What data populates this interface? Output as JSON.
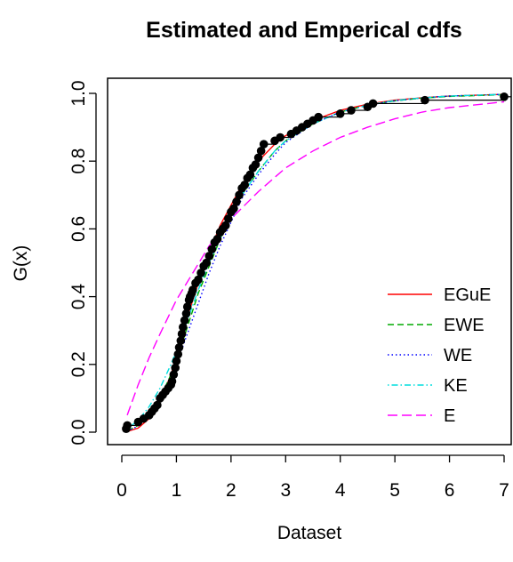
{
  "chart_data": {
    "type": "line",
    "title": "Estimated and Emperical cdfs",
    "xlabel": "Dataset",
    "ylabel": "G(x)",
    "xlim": [
      0,
      7
    ],
    "ylim": [
      0,
      1
    ],
    "x_ticks": [
      "0",
      "1",
      "2",
      "3",
      "4",
      "5",
      "6",
      "7"
    ],
    "y_ticks": [
      "0.0",
      "0.2",
      "0.4",
      "0.6",
      "0.8",
      "1.0"
    ],
    "grid": false,
    "legend_position": "bottom-right",
    "series": [
      {
        "name": "EGuE",
        "color": "#ff0000",
        "dash": "solid",
        "x": [
          0.1,
          0.3,
          0.5,
          0.7,
          0.9,
          1.0,
          1.1,
          1.2,
          1.4,
          1.6,
          1.8,
          2.0,
          2.2,
          2.5,
          2.8,
          3.0,
          3.5,
          4.0,
          4.5,
          5.0,
          5.5,
          6.0,
          7.0
        ],
        "y": [
          0.002,
          0.012,
          0.04,
          0.09,
          0.17,
          0.22,
          0.28,
          0.34,
          0.44,
          0.53,
          0.61,
          0.67,
          0.73,
          0.8,
          0.85,
          0.875,
          0.92,
          0.95,
          0.968,
          0.98,
          0.987,
          0.992,
          0.997
        ]
      },
      {
        "name": "EWE",
        "color": "#00aa00",
        "dash": "dashed",
        "x": [
          0.1,
          0.3,
          0.5,
          0.7,
          0.9,
          1.0,
          1.2,
          1.4,
          1.6,
          1.8,
          2.0,
          2.2,
          2.5,
          2.8,
          3.0,
          3.5,
          4.0,
          4.5,
          5.0,
          5.5,
          6.0,
          7.0
        ],
        "y": [
          0.004,
          0.02,
          0.05,
          0.1,
          0.17,
          0.21,
          0.31,
          0.41,
          0.49,
          0.57,
          0.64,
          0.7,
          0.77,
          0.83,
          0.86,
          0.91,
          0.945,
          0.965,
          0.978,
          0.986,
          0.991,
          0.996
        ]
      },
      {
        "name": "WE",
        "color": "#0000ff",
        "dash": "dotted",
        "x": [
          0.1,
          0.3,
          0.5,
          0.7,
          0.9,
          1.0,
          1.2,
          1.4,
          1.6,
          1.8,
          2.0,
          2.2,
          2.5,
          2.8,
          3.0,
          3.5,
          4.0,
          4.5,
          5.0,
          5.5,
          6.0,
          7.0
        ],
        "y": [
          0.003,
          0.018,
          0.048,
          0.095,
          0.16,
          0.2,
          0.29,
          0.38,
          0.47,
          0.55,
          0.62,
          0.69,
          0.76,
          0.82,
          0.855,
          0.91,
          0.945,
          0.965,
          0.978,
          0.987,
          0.992,
          0.997
        ]
      },
      {
        "name": "KE",
        "color": "#00dddd",
        "dash": "dotdash",
        "x": [
          0.1,
          0.3,
          0.5,
          0.7,
          0.9,
          1.0,
          1.2,
          1.4,
          1.6,
          1.8,
          2.0,
          2.2,
          2.5,
          2.8,
          3.0,
          3.5,
          4.0,
          4.5,
          5.0,
          5.5,
          6.0,
          7.0
        ],
        "y": [
          0.01,
          0.035,
          0.075,
          0.13,
          0.2,
          0.24,
          0.33,
          0.42,
          0.5,
          0.57,
          0.64,
          0.7,
          0.77,
          0.83,
          0.86,
          0.91,
          0.945,
          0.966,
          0.979,
          0.987,
          0.992,
          0.997
        ]
      },
      {
        "name": "E",
        "color": "#ff00ff",
        "dash": "longdash",
        "x": [
          0.1,
          0.3,
          0.5,
          0.7,
          1.0,
          1.3,
          1.6,
          2.0,
          2.5,
          3.0,
          3.5,
          4.0,
          4.5,
          5.0,
          5.5,
          6.0,
          7.0
        ],
        "y": [
          0.05,
          0.14,
          0.22,
          0.29,
          0.39,
          0.47,
          0.55,
          0.63,
          0.71,
          0.78,
          0.83,
          0.87,
          0.9,
          0.925,
          0.945,
          0.958,
          0.975
        ]
      }
    ],
    "empirical": {
      "name": "Empirical",
      "color": "#000000",
      "x": [
        0.08,
        0.1,
        0.3,
        0.4,
        0.5,
        0.55,
        0.6,
        0.65,
        0.7,
        0.75,
        0.8,
        0.85,
        0.9,
        0.92,
        0.95,
        0.98,
        1.0,
        1.03,
        1.05,
        1.08,
        1.1,
        1.12,
        1.15,
        1.18,
        1.2,
        1.23,
        1.25,
        1.28,
        1.3,
        1.35,
        1.4,
        1.45,
        1.5,
        1.55,
        1.6,
        1.65,
        1.7,
        1.75,
        1.8,
        1.85,
        1.9,
        1.95,
        2.0,
        2.05,
        2.1,
        2.15,
        2.2,
        2.25,
        2.3,
        2.35,
        2.4,
        2.45,
        2.5,
        2.55,
        2.6,
        2.8,
        2.9,
        3.1,
        3.2,
        3.3,
        3.4,
        3.5,
        3.6,
        4.0,
        4.2,
        4.5,
        4.6,
        5.55,
        7.0
      ],
      "y": [
        0.01,
        0.02,
        0.03,
        0.04,
        0.05,
        0.06,
        0.07,
        0.08,
        0.1,
        0.11,
        0.12,
        0.13,
        0.14,
        0.15,
        0.17,
        0.19,
        0.21,
        0.23,
        0.25,
        0.27,
        0.29,
        0.31,
        0.33,
        0.35,
        0.37,
        0.39,
        0.4,
        0.41,
        0.42,
        0.44,
        0.45,
        0.47,
        0.49,
        0.5,
        0.52,
        0.54,
        0.56,
        0.57,
        0.59,
        0.6,
        0.61,
        0.63,
        0.65,
        0.66,
        0.68,
        0.7,
        0.72,
        0.73,
        0.75,
        0.76,
        0.78,
        0.79,
        0.81,
        0.83,
        0.85,
        0.86,
        0.87,
        0.88,
        0.89,
        0.9,
        0.91,
        0.92,
        0.93,
        0.94,
        0.95,
        0.96,
        0.97,
        0.98,
        0.99
      ]
    }
  }
}
